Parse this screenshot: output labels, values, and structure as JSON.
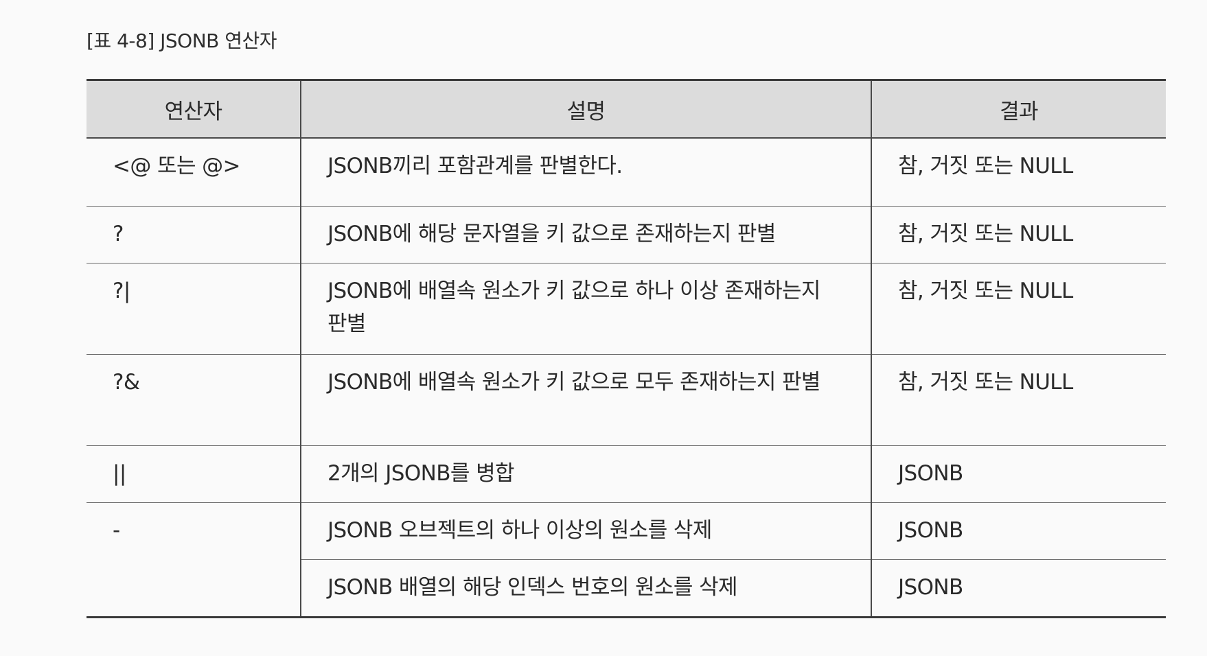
{
  "caption": "[표 4-8] JSONB 연산자",
  "table": {
    "headers": [
      "연산자",
      "설명",
      "결과"
    ],
    "rows": [
      {
        "operator": "<@ 또는 @>",
        "description": "JSONB끼리 포함관계를 판별한다.",
        "result": "참, 거짓 또는 NULL"
      },
      {
        "operator": "?",
        "description": "JSONB에 해당 문자열을 키 값으로 존재하는지 판별",
        "result": "참, 거짓 또는 NULL"
      },
      {
        "operator": "?|",
        "description": "JSONB에 배열속 원소가 키 값으로 하나 이상 존재하는지 판별",
        "result": "참, 거짓 또는 NULL"
      },
      {
        "operator": "?&",
        "description": "JSONB에 배열속 원소가 키 값으로 모두 존재하는지 판별",
        "result": "참, 거짓 또는 NULL"
      },
      {
        "operator": "||",
        "description": "2개의 JSONB를 병합",
        "result": "JSONB"
      },
      {
        "operator": "-",
        "description": "JSONB 오브젝트의 하나 이상의 원소를 삭제",
        "result": "JSONB"
      },
      {
        "operator": "",
        "description": "JSONB 배열의 해당 인덱스 번호의 원소를 삭제",
        "result": "JSONB"
      }
    ]
  }
}
